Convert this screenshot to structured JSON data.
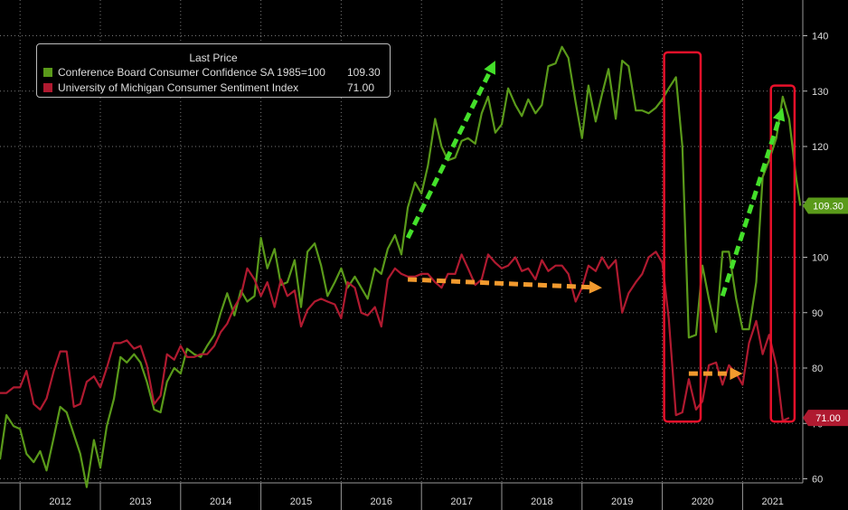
{
  "chart_data": {
    "type": "line",
    "legend": {
      "title": "Last Price",
      "placement": "top-left",
      "entries": [
        {
          "name": "Conference Board Consumer Confidence SA 1985=100",
          "value": "109.30",
          "color": "#5a9a1a"
        },
        {
          "name": "University of Michigan Consumer Sentiment Index",
          "value": "71.00",
          "color": "#b01a30"
        }
      ]
    },
    "xlabels": [
      "2012",
      "2013",
      "2014",
      "2015",
      "2016",
      "2017",
      "2018",
      "2019",
      "2020",
      "2021"
    ],
    "xlim": [
      2011.75,
      2021.75
    ],
    "ylim": [
      58,
      143
    ],
    "yticks": [
      "60",
      "70",
      "80",
      "90",
      "100",
      "110",
      "120",
      "130",
      "140"
    ],
    "grid": true,
    "series": [
      {
        "name": "Conference Board Consumer Confidence SA 1985=100",
        "color": "#5a9a1a",
        "last_label": "109.30",
        "last_value": 109.3,
        "points": [
          [
            2011.75,
            63.5
          ],
          [
            2011.83,
            71.5
          ],
          [
            2011.92,
            69.5
          ],
          [
            2012.0,
            69.0
          ],
          [
            2012.08,
            64.5
          ],
          [
            2012.17,
            63.0
          ],
          [
            2012.25,
            65.0
          ],
          [
            2012.33,
            61.5
          ],
          [
            2012.42,
            67.5
          ],
          [
            2012.5,
            73.0
          ],
          [
            2012.58,
            72.0
          ],
          [
            2012.67,
            68.0
          ],
          [
            2012.75,
            64.5
          ],
          [
            2012.83,
            58.5
          ],
          [
            2012.92,
            67.0
          ],
          [
            2013.0,
            62.0
          ],
          [
            2013.08,
            69.5
          ],
          [
            2013.17,
            74.5
          ],
          [
            2013.25,
            82.0
          ],
          [
            2013.33,
            81.0
          ],
          [
            2013.42,
            82.5
          ],
          [
            2013.5,
            81.0
          ],
          [
            2013.58,
            77.5
          ],
          [
            2013.67,
            72.5
          ],
          [
            2013.75,
            72.0
          ],
          [
            2013.83,
            77.5
          ],
          [
            2013.92,
            80.0
          ],
          [
            2014.0,
            79.0
          ],
          [
            2014.08,
            83.5
          ],
          [
            2014.17,
            82.5
          ],
          [
            2014.25,
            82.0
          ],
          [
            2014.33,
            84.0
          ],
          [
            2014.42,
            86.0
          ],
          [
            2014.5,
            90.0
          ],
          [
            2014.58,
            93.5
          ],
          [
            2014.67,
            89.5
          ],
          [
            2014.75,
            94.0
          ],
          [
            2014.83,
            92.0
          ],
          [
            2014.92,
            93.0
          ],
          [
            2015.0,
            103.5
          ],
          [
            2015.08,
            98.0
          ],
          [
            2015.17,
            101.5
          ],
          [
            2015.25,
            95.0
          ],
          [
            2015.33,
            95.5
          ],
          [
            2015.42,
            99.5
          ],
          [
            2015.5,
            91.0
          ],
          [
            2015.58,
            101.0
          ],
          [
            2015.67,
            102.5
          ],
          [
            2015.75,
            98.5
          ],
          [
            2015.83,
            93.0
          ],
          [
            2015.92,
            95.5
          ],
          [
            2016.0,
            98.0
          ],
          [
            2016.08,
            94.5
          ],
          [
            2016.17,
            96.5
          ],
          [
            2016.25,
            94.5
          ],
          [
            2016.33,
            92.5
          ],
          [
            2016.42,
            98.0
          ],
          [
            2016.5,
            97.0
          ],
          [
            2016.58,
            101.5
          ],
          [
            2016.67,
            104.0
          ],
          [
            2016.75,
            100.5
          ],
          [
            2016.83,
            109.0
          ],
          [
            2016.92,
            113.5
          ],
          [
            2017.0,
            111.5
          ],
          [
            2017.08,
            116.5
          ],
          [
            2017.17,
            125.0
          ],
          [
            2017.25,
            120.0
          ],
          [
            2017.33,
            117.5
          ],
          [
            2017.42,
            118.0
          ],
          [
            2017.5,
            121.0
          ],
          [
            2017.58,
            121.5
          ],
          [
            2017.67,
            120.5
          ],
          [
            2017.75,
            126.0
          ],
          [
            2017.83,
            129.0
          ],
          [
            2017.92,
            122.5
          ],
          [
            2018.0,
            124.0
          ],
          [
            2018.08,
            130.5
          ],
          [
            2018.17,
            127.5
          ],
          [
            2018.25,
            125.5
          ],
          [
            2018.33,
            128.5
          ],
          [
            2018.42,
            126.0
          ],
          [
            2018.5,
            127.5
          ],
          [
            2018.58,
            134.5
          ],
          [
            2018.67,
            135.0
          ],
          [
            2018.75,
            138.0
          ],
          [
            2018.83,
            136.0
          ],
          [
            2018.92,
            128.0
          ],
          [
            2019.0,
            121.5
          ],
          [
            2019.08,
            131.0
          ],
          [
            2019.17,
            124.5
          ],
          [
            2019.25,
            129.5
          ],
          [
            2019.33,
            134.0
          ],
          [
            2019.42,
            125.0
          ],
          [
            2019.5,
            135.5
          ],
          [
            2019.58,
            134.5
          ],
          [
            2019.67,
            126.5
          ],
          [
            2019.75,
            126.5
          ],
          [
            2019.83,
            126.0
          ],
          [
            2019.92,
            127.0
          ],
          [
            2020.0,
            128.5
          ],
          [
            2020.08,
            130.5
          ],
          [
            2020.17,
            132.5
          ],
          [
            2020.25,
            120.0
          ],
          [
            2020.33,
            85.5
          ],
          [
            2020.42,
            86.0
          ],
          [
            2020.5,
            98.5
          ],
          [
            2020.58,
            92.5
          ],
          [
            2020.67,
            86.5
          ],
          [
            2020.75,
            101.0
          ],
          [
            2020.83,
            101.0
          ],
          [
            2020.92,
            92.5
          ],
          [
            2021.0,
            87.0
          ],
          [
            2021.08,
            87.0
          ],
          [
            2021.17,
            95.5
          ],
          [
            2021.25,
            114.5
          ],
          [
            2021.33,
            117.5
          ],
          [
            2021.42,
            121.5
          ],
          [
            2021.5,
            129.0
          ],
          [
            2021.58,
            125.0
          ],
          [
            2021.67,
            114.0
          ],
          [
            2021.72,
            109.3
          ]
        ]
      },
      {
        "name": "University of Michigan Consumer Sentiment Index",
        "color": "#b01a30",
        "last_label": "71.00",
        "last_value": 71.0,
        "points": [
          [
            2011.75,
            75.5
          ],
          [
            2011.83,
            75.5
          ],
          [
            2011.92,
            76.5
          ],
          [
            2012.0,
            76.5
          ],
          [
            2012.08,
            79.5
          ],
          [
            2012.17,
            73.5
          ],
          [
            2012.25,
            72.5
          ],
          [
            2012.33,
            74.5
          ],
          [
            2012.42,
            79.5
          ],
          [
            2012.5,
            83.0
          ],
          [
            2012.58,
            83.0
          ],
          [
            2012.67,
            73.0
          ],
          [
            2012.75,
            73.5
          ],
          [
            2012.83,
            77.5
          ],
          [
            2012.92,
            78.5
          ],
          [
            2013.0,
            76.5
          ],
          [
            2013.08,
            80.0
          ],
          [
            2013.17,
            84.5
          ],
          [
            2013.25,
            84.5
          ],
          [
            2013.33,
            85.0
          ],
          [
            2013.42,
            83.5
          ],
          [
            2013.5,
            84.0
          ],
          [
            2013.58,
            80.5
          ],
          [
            2013.67,
            73.5
          ],
          [
            2013.75,
            75.0
          ],
          [
            2013.83,
            82.5
          ],
          [
            2013.92,
            81.5
          ],
          [
            2014.0,
            84.0
          ],
          [
            2014.08,
            82.0
          ],
          [
            2014.17,
            82.0
          ],
          [
            2014.25,
            82.5
          ],
          [
            2014.33,
            82.5
          ],
          [
            2014.42,
            84.0
          ],
          [
            2014.5,
            86.5
          ],
          [
            2014.58,
            88.0
          ],
          [
            2014.67,
            91.0
          ],
          [
            2014.75,
            93.0
          ],
          [
            2014.83,
            98.0
          ],
          [
            2014.92,
            96.0
          ],
          [
            2015.0,
            93.0
          ],
          [
            2015.08,
            95.5
          ],
          [
            2015.17,
            91.0
          ],
          [
            2015.25,
            96.0
          ],
          [
            2015.33,
            93.0
          ],
          [
            2015.42,
            94.0
          ],
          [
            2015.5,
            87.5
          ],
          [
            2015.58,
            90.5
          ],
          [
            2015.67,
            92.0
          ],
          [
            2015.75,
            92.5
          ],
          [
            2015.83,
            92.0
          ],
          [
            2015.92,
            91.5
          ],
          [
            2016.0,
            89.0
          ],
          [
            2016.08,
            95.5
          ],
          [
            2016.17,
            94.5
          ],
          [
            2016.25,
            90.0
          ],
          [
            2016.33,
            89.5
          ],
          [
            2016.42,
            91.0
          ],
          [
            2016.5,
            87.5
          ],
          [
            2016.58,
            96.0
          ],
          [
            2016.67,
            98.0
          ],
          [
            2016.75,
            97.0
          ],
          [
            2016.83,
            96.5
          ],
          [
            2016.92,
            96.5
          ],
          [
            2017.0,
            97.0
          ],
          [
            2017.08,
            97.0
          ],
          [
            2017.17,
            95.5
          ],
          [
            2017.25,
            94.5
          ],
          [
            2017.33,
            97.0
          ],
          [
            2017.42,
            97.0
          ],
          [
            2017.5,
            100.5
          ],
          [
            2017.58,
            98.0
          ],
          [
            2017.67,
            95.0
          ],
          [
            2017.75,
            96.0
          ],
          [
            2017.83,
            100.5
          ],
          [
            2017.92,
            99.0
          ],
          [
            2018.0,
            98.0
          ],
          [
            2018.08,
            98.5
          ],
          [
            2018.17,
            100.0
          ],
          [
            2018.25,
            97.5
          ],
          [
            2018.33,
            98.0
          ],
          [
            2018.42,
            96.0
          ],
          [
            2018.5,
            99.5
          ],
          [
            2018.58,
            97.5
          ],
          [
            2018.67,
            98.5
          ],
          [
            2018.75,
            98.5
          ],
          [
            2018.83,
            97.0
          ],
          [
            2018.92,
            92.0
          ],
          [
            2019.0,
            94.5
          ],
          [
            2019.08,
            98.5
          ],
          [
            2019.17,
            97.5
          ],
          [
            2019.25,
            100.0
          ],
          [
            2019.33,
            98.0
          ],
          [
            2019.42,
            99.5
          ],
          [
            2019.5,
            90.0
          ],
          [
            2019.58,
            93.5
          ],
          [
            2019.67,
            95.5
          ],
          [
            2019.75,
            97.0
          ],
          [
            2019.83,
            100.0
          ],
          [
            2019.92,
            101.0
          ],
          [
            2020.0,
            99.0
          ],
          [
            2020.08,
            89.0
          ],
          [
            2020.17,
            71.5
          ],
          [
            2020.25,
            72.0
          ],
          [
            2020.33,
            78.0
          ],
          [
            2020.42,
            72.5
          ],
          [
            2020.5,
            74.0
          ],
          [
            2020.58,
            80.5
          ],
          [
            2020.67,
            81.0
          ],
          [
            2020.75,
            77.0
          ],
          [
            2020.83,
            80.5
          ],
          [
            2020.92,
            79.0
          ],
          [
            2021.0,
            77.0
          ],
          [
            2021.08,
            84.5
          ],
          [
            2021.17,
            88.5
          ],
          [
            2021.25,
            82.5
          ],
          [
            2021.33,
            86.0
          ],
          [
            2021.42,
            80.5
          ],
          [
            2021.5,
            70.5
          ],
          [
            2021.58,
            71.0
          ]
        ]
      }
    ],
    "annotations": {
      "green_arrows": [
        [
          [
            2016.83,
            103.5
          ],
          [
            2017.92,
            135.5
          ]
        ],
        [
          [
            2020.75,
            93.0
          ],
          [
            2021.5,
            127.0
          ]
        ]
      ],
      "orange_arrows": [
        [
          [
            2016.83,
            96.0
          ],
          [
            2019.25,
            94.5
          ]
        ],
        [
          [
            2020.33,
            79.0
          ],
          [
            2021.0,
            79.0
          ]
        ]
      ],
      "red_boxes": [
        [
          [
            2020.0,
            70.0
          ],
          [
            2020.5,
            137.0
          ]
        ],
        [
          [
            2021.33,
            70.0
          ],
          [
            2021.67,
            131.0
          ]
        ]
      ]
    }
  }
}
